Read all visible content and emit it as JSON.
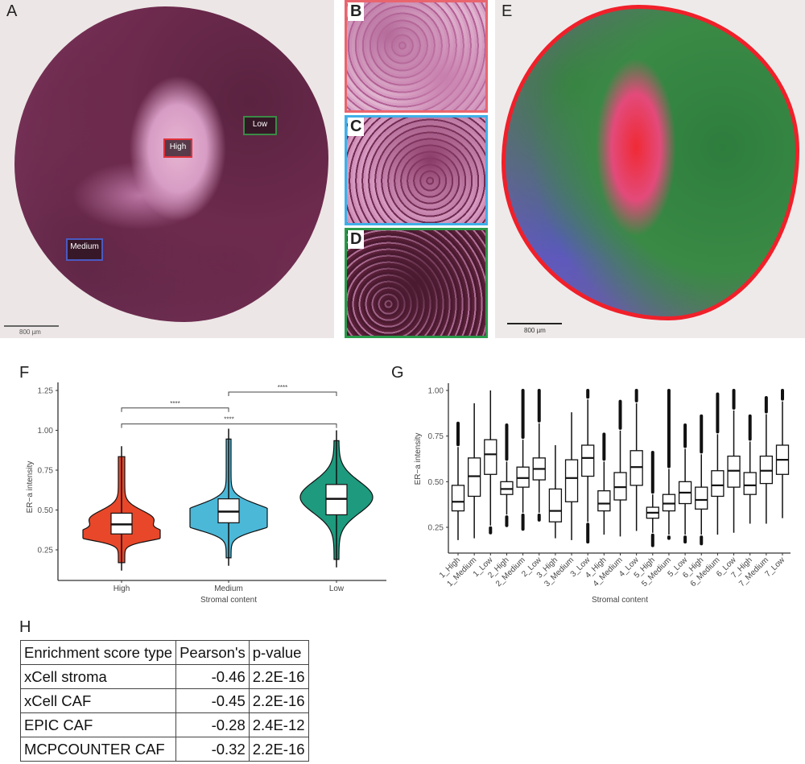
{
  "panel_labels": {
    "a": "A",
    "b": "B",
    "c": "C",
    "d": "D",
    "e": "E",
    "f": "F",
    "g": "G",
    "h": "H"
  },
  "panel_a": {
    "roi_high": "High",
    "roi_low": "Low",
    "roi_medium": "Medium",
    "scale": "800 µm"
  },
  "panel_e": {
    "scale": "800 µm"
  },
  "colors": {
    "high": "#e8472a",
    "medium": "#4bb8d8",
    "low": "#1e9a7e",
    "roi_high": "#e0303a",
    "roi_low": "#3a8a45",
    "roi_medium": "#4a5ac0"
  },
  "chart_data": [
    {
      "type": "violin",
      "xlabel": "Stromal content",
      "ylabel": "ER−a intensity",
      "ylim": [
        0.1,
        1.3
      ],
      "yticks": [
        "0.25",
        "0.50",
        "0.75",
        "1.00",
        "1.25"
      ],
      "categories": [
        "High",
        "Medium",
        "Low"
      ],
      "box": [
        {
          "min": 0.12,
          "q1": 0.35,
          "median": 0.41,
          "q3": 0.48,
          "max": 0.9
        },
        {
          "min": 0.15,
          "q1": 0.42,
          "median": 0.49,
          "q3": 0.57,
          "max": 1.01
        },
        {
          "min": 0.14,
          "q1": 0.47,
          "median": 0.57,
          "q3": 0.66,
          "max": 1.0
        }
      ],
      "significance": [
        {
          "from": "High",
          "to": "Medium",
          "label": "****",
          "y": 1.14
        },
        {
          "from": "Medium",
          "to": "Low",
          "label": "****",
          "y": 1.24
        },
        {
          "from": "High",
          "to": "Low",
          "label": "****",
          "y": 1.04
        }
      ]
    },
    {
      "type": "box",
      "xlabel": "Stromal content",
      "ylabel": "ER−a intensity",
      "ylim": [
        0.12,
        1.02
      ],
      "yticks": [
        "0.25",
        "0.50",
        "0.75",
        "1.00"
      ],
      "categories": [
        "1_High",
        "1_Medium",
        "1_Low",
        "2_High",
        "2_Medium",
        "2_Low",
        "3_High",
        "3_Medium",
        "3_Low",
        "4_High",
        "4_Medium",
        "4_Low",
        "5_High",
        "5_Medium",
        "5_Low",
        "6_High",
        "6_Medium",
        "6_Low",
        "7_High",
        "7_Medium",
        "7_Low"
      ],
      "boxes": [
        {
          "min": 0.18,
          "q1": 0.34,
          "median": 0.39,
          "q3": 0.48,
          "max": 0.69,
          "out_low": null,
          "out_high": 0.82
        },
        {
          "min": 0.19,
          "q1": 0.42,
          "median": 0.53,
          "q3": 0.63,
          "max": 0.93,
          "out_low": null,
          "out_high": null
        },
        {
          "min": 0.26,
          "q1": 0.54,
          "median": 0.65,
          "q3": 0.73,
          "max": 1.0,
          "out_low": 0.22,
          "out_high": null
        },
        {
          "min": 0.32,
          "q1": 0.43,
          "median": 0.46,
          "q3": 0.5,
          "max": 0.61,
          "out_low": 0.26,
          "out_high": 0.81
        },
        {
          "min": 0.33,
          "q1": 0.47,
          "median": 0.52,
          "q3": 0.58,
          "max": 0.73,
          "out_low": 0.24,
          "out_high": 1.0
        },
        {
          "min": 0.33,
          "q1": 0.51,
          "median": 0.57,
          "q3": 0.63,
          "max": 0.82,
          "out_low": 0.29,
          "out_high": 1.0
        },
        {
          "min": 0.19,
          "q1": 0.28,
          "median": 0.34,
          "q3": 0.46,
          "max": 0.7,
          "out_low": null,
          "out_high": null
        },
        {
          "min": 0.18,
          "q1": 0.39,
          "median": 0.52,
          "q3": 0.62,
          "max": 0.88,
          "out_low": null,
          "out_high": null
        },
        {
          "min": 0.28,
          "q1": 0.53,
          "median": 0.63,
          "q3": 0.7,
          "max": 0.95,
          "out_low": 0.17,
          "out_high": 1.0
        },
        {
          "min": 0.21,
          "q1": 0.34,
          "median": 0.38,
          "q3": 0.45,
          "max": 0.61,
          "out_low": null,
          "out_high": 0.76
        },
        {
          "min": 0.2,
          "q1": 0.4,
          "median": 0.47,
          "q3": 0.55,
          "max": 0.78,
          "out_low": null,
          "out_high": 0.94
        },
        {
          "min": 0.23,
          "q1": 0.48,
          "median": 0.58,
          "q3": 0.67,
          "max": 0.93,
          "out_low": null,
          "out_high": 1.0
        },
        {
          "min": 0.22,
          "q1": 0.3,
          "median": 0.33,
          "q3": 0.36,
          "max": 0.43,
          "out_low": 0.15,
          "out_high": 0.66
        },
        {
          "min": 0.21,
          "q1": 0.34,
          "median": 0.38,
          "q3": 0.43,
          "max": 0.57,
          "out_low": 0.19,
          "out_high": 1.0
        },
        {
          "min": 0.21,
          "q1": 0.38,
          "median": 0.44,
          "q3": 0.5,
          "max": 0.68,
          "out_low": 0.17,
          "out_high": 0.81
        },
        {
          "min": 0.21,
          "q1": 0.35,
          "median": 0.4,
          "q3": 0.47,
          "max": 0.65,
          "out_low": 0.16,
          "out_high": 0.86
        },
        {
          "min": 0.21,
          "q1": 0.42,
          "median": 0.48,
          "q3": 0.56,
          "max": 0.76,
          "out_low": null,
          "out_high": 0.98
        },
        {
          "min": 0.22,
          "q1": 0.47,
          "median": 0.56,
          "q3": 0.64,
          "max": 0.89,
          "out_low": null,
          "out_high": 1.0
        },
        {
          "min": 0.27,
          "q1": 0.43,
          "median": 0.48,
          "q3": 0.55,
          "max": 0.72,
          "out_low": null,
          "out_high": 0.86
        },
        {
          "min": 0.27,
          "q1": 0.49,
          "median": 0.56,
          "q3": 0.64,
          "max": 0.87,
          "out_low": null,
          "out_high": 0.96
        },
        {
          "min": 0.3,
          "q1": 0.54,
          "median": 0.62,
          "q3": 0.7,
          "max": 0.94,
          "out_low": null,
          "out_high": 1.0
        }
      ]
    }
  ],
  "table_h": {
    "headers": [
      "Enrichment score type",
      "Pearson's",
      "p-value"
    ],
    "rows": [
      [
        "xCell stroma",
        "-0.46",
        "2.2E-16"
      ],
      [
        "xCell CAF",
        "-0.45",
        "2.2E-16"
      ],
      [
        "EPIC CAF",
        "-0.28",
        "2.4E-12"
      ],
      [
        "MCPCOUNTER CAF",
        "-0.32",
        "2.2E-16"
      ]
    ]
  }
}
